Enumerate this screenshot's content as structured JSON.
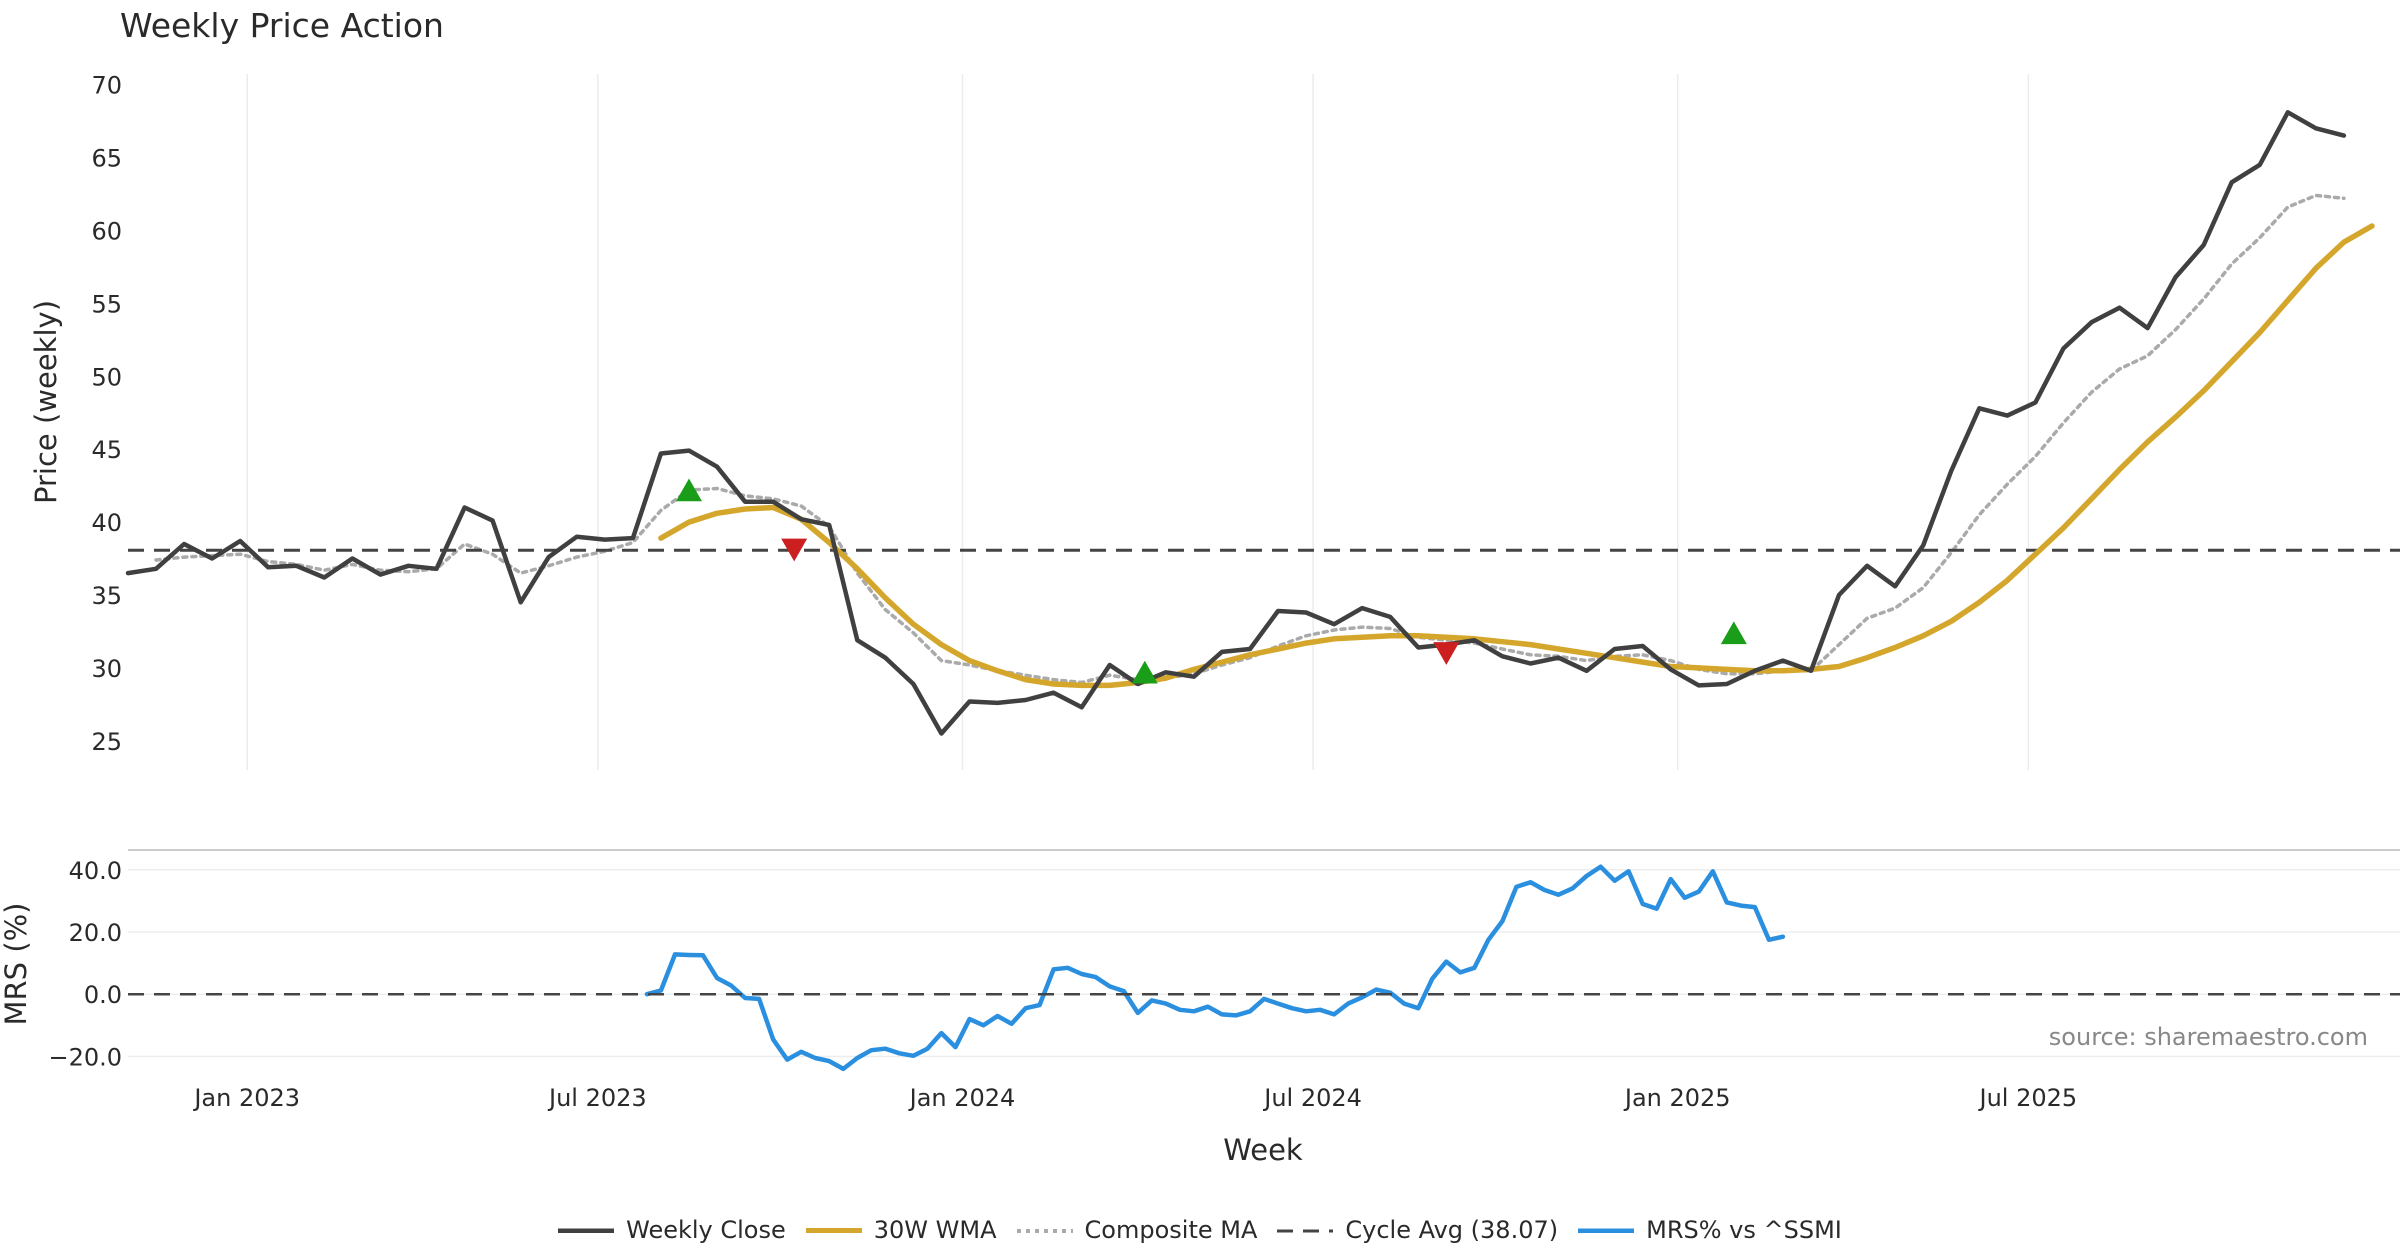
{
  "chart_data": [
    {
      "type": "line",
      "title": "Weekly Price Action",
      "xlabel": "Week",
      "ylabel": "Price (weekly)",
      "ylim": [
        23,
        71
      ],
      "yticks": [
        25,
        30,
        35,
        40,
        45,
        50,
        55,
        60,
        65,
        70
      ],
      "x_start_week": -4,
      "x_step_weeks": 4,
      "series": [
        {
          "name": "Weekly Close",
          "color": "#404040",
          "values": [
            36.5,
            36.8,
            38.5,
            37.5,
            38.7,
            36.9,
            37.0,
            36.2,
            37.5,
            36.4,
            37.0,
            36.8,
            41.0,
            40.1,
            34.5,
            37.6,
            39.0,
            38.8,
            38.9,
            44.7,
            44.9,
            43.8,
            41.4,
            41.4,
            40.2,
            39.8,
            31.9,
            30.7,
            28.9,
            25.5,
            27.7,
            27.6,
            27.8,
            28.3,
            27.3,
            30.2,
            28.9,
            29.7,
            29.4,
            31.1,
            31.3,
            33.9,
            33.8,
            33.0,
            34.1,
            33.5,
            31.4,
            31.6,
            31.9,
            30.8,
            30.3,
            30.7,
            29.8,
            31.3,
            31.5,
            29.9,
            28.8,
            28.9,
            29.8,
            30.5,
            29.8,
            35.0,
            37.0,
            35.6,
            38.4,
            43.5,
            47.8,
            47.3,
            48.2,
            51.9,
            53.7,
            54.7,
            53.3,
            56.8,
            59.0,
            63.3,
            64.5,
            68.1,
            67.0,
            66.5
          ]
        },
        {
          "name": "30W WMA",
          "color": "#d4a72c",
          "values": [
            null,
            null,
            null,
            null,
            null,
            null,
            null,
            null,
            null,
            null,
            null,
            null,
            null,
            null,
            null,
            null,
            null,
            null,
            null,
            38.9,
            40.0,
            40.6,
            40.9,
            41.0,
            40.2,
            38.6,
            36.8,
            34.8,
            33.0,
            31.6,
            30.5,
            29.8,
            29.2,
            28.9,
            28.8,
            28.8,
            29.0,
            29.3,
            29.9,
            30.4,
            30.9,
            31.3,
            31.7,
            32.0,
            32.1,
            32.2,
            32.2,
            32.1,
            32.0,
            31.8,
            31.6,
            31.3,
            31.0,
            30.7,
            30.4,
            30.1,
            30.0,
            29.9,
            29.8,
            29.8,
            29.9,
            30.1,
            30.7,
            31.4,
            32.2,
            33.2,
            34.5,
            36.0,
            37.8,
            39.6,
            41.6,
            43.6,
            45.5,
            47.2,
            49.0,
            51.0,
            53.0,
            55.2,
            57.4,
            59.2,
            60.3
          ]
        },
        {
          "name": "Composite MA",
          "color": "#aaaaaa",
          "values": [
            null,
            37.4,
            37.6,
            37.7,
            37.8,
            37.3,
            37.1,
            36.7,
            37.1,
            36.7,
            36.6,
            36.8,
            38.5,
            37.8,
            36.5,
            37.0,
            37.6,
            38.0,
            38.6,
            40.8,
            42.2,
            42.3,
            41.8,
            41.6,
            41.1,
            39.7,
            36.5,
            34.0,
            32.4,
            30.5,
            30.2,
            29.8,
            29.5,
            29.2,
            29.0,
            29.5,
            29.2,
            29.3,
            29.6,
            30.2,
            30.7,
            31.5,
            32.2,
            32.6,
            32.8,
            32.7,
            32.1,
            31.9,
            31.7,
            31.3,
            30.9,
            30.8,
            30.5,
            30.8,
            30.9,
            30.5,
            29.9,
            29.6,
            29.6,
            29.8,
            29.8,
            31.6,
            33.4,
            34.1,
            35.5,
            37.9,
            40.5,
            42.6,
            44.5,
            46.8,
            48.9,
            50.5,
            51.4,
            53.2,
            55.3,
            57.7,
            59.5,
            61.6,
            62.4,
            62.2
          ]
        },
        {
          "name": "Cycle Avg (38.07)",
          "color": "#444444",
          "constant": 38.07
        }
      ],
      "markers": [
        {
          "type": "buy",
          "week": 76,
          "value": 42.1,
          "color": "#1a9e1a"
        },
        {
          "type": "sell",
          "week": 91,
          "value": 38.2,
          "color": "#cc1f1f"
        },
        {
          "type": "buy",
          "week": 141,
          "value": 29.6,
          "color": "#1a9e1a"
        },
        {
          "type": "sell",
          "week": 184,
          "value": 31.1,
          "color": "#cc1f1f"
        },
        {
          "type": "buy",
          "week": 225,
          "value": 32.3,
          "color": "#1a9e1a"
        }
      ]
    },
    {
      "type": "line",
      "title": "",
      "xlabel": "Week",
      "ylabel": "MRS (%)",
      "ylim": [
        -25,
        47
      ],
      "yticks": [
        -20.0,
        0.0,
        20.0,
        40.0
      ],
      "ytick_labels": [
        "−20.0",
        "0.0",
        "20.0",
        "40.0"
      ],
      "x_start_week": 70,
      "x_step_weeks": 2,
      "series": [
        {
          "name": "MRS% vs ^SSMI",
          "color": "#2b8fe0",
          "values": [
            0.0,
            1.2,
            12.8,
            12.6,
            12.5,
            5.2,
            2.8,
            -1.2,
            -1.5,
            -14.5,
            -21.0,
            -18.5,
            -20.5,
            -21.5,
            -24.0,
            -20.5,
            -18.0,
            -17.5,
            -19.0,
            -19.8,
            -17.5,
            -12.5,
            -17.0,
            -8.0,
            -10.0,
            -7.0,
            -9.5,
            -4.5,
            -3.5,
            8.0,
            8.5,
            6.5,
            5.5,
            2.5,
            1.0,
            -6.0,
            -2.0,
            -3.0,
            -5.0,
            -5.5,
            -4.0,
            -6.5,
            -6.8,
            -5.5,
            -1.5,
            -3.0,
            -4.5,
            -5.5,
            -5.0,
            -6.5,
            -3.0,
            -1.0,
            1.5,
            0.5,
            -3.0,
            -4.5,
            5.0,
            10.5,
            7.0,
            8.5,
            17.5,
            23.5,
            34.5,
            36.0,
            33.5,
            32.0,
            34.0,
            38.0,
            41.0,
            36.5,
            39.5,
            29.0,
            27.5,
            37.0,
            31.0,
            33.0,
            39.5,
            29.5,
            28.5,
            28.0,
            17.5,
            18.5
          ]
        },
        {
          "name": "Zero line",
          "color": "#444444",
          "constant": 0.0
        }
      ],
      "x_axis": {
        "range_weeks": [
          -4,
          320
        ],
        "ticks": [
          {
            "label": "Jan 2023",
            "week": 13
          },
          {
            "label": "Jul 2023",
            "week": 63
          },
          {
            "label": "Jan 2024",
            "week": 115
          },
          {
            "label": "Jul 2024",
            "week": 165
          },
          {
            "label": "Jan 2025",
            "week": 217
          },
          {
            "label": "Jul 2025",
            "week": 267
          }
        ]
      },
      "annotation": "source: sharemaestro.com"
    }
  ],
  "legend": [
    {
      "label": "Weekly Close",
      "color": "#404040",
      "style": "solid"
    },
    {
      "label": "30W WMA",
      "color": "#d4a72c",
      "style": "solid"
    },
    {
      "label": "Composite MA",
      "color": "#aaaaaa",
      "style": "dotted"
    },
    {
      "label": "Cycle Avg (38.07)",
      "color": "#444444",
      "style": "dashed"
    },
    {
      "label": "MRS% vs ^SSMI",
      "color": "#2b8fe0",
      "style": "solid"
    }
  ]
}
